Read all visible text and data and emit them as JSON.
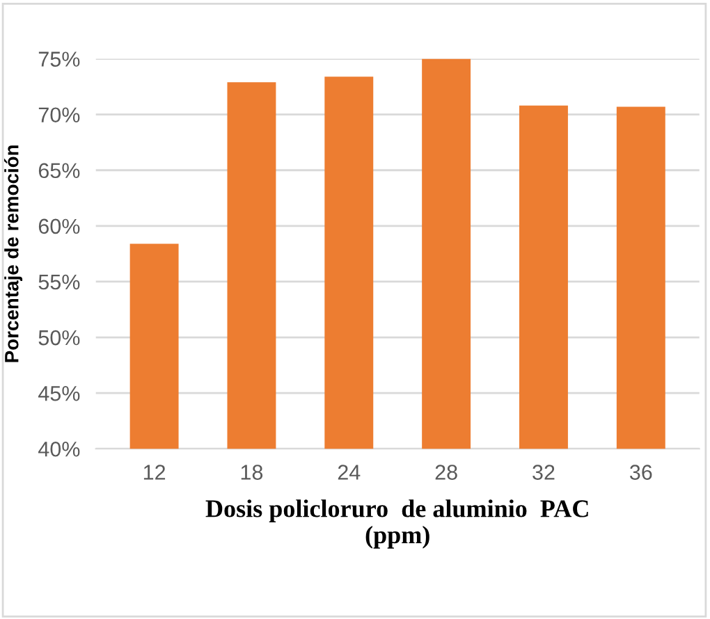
{
  "chart_data": {
    "type": "bar",
    "xlabel": "Dosis policloruro  de aluminio  PAC\n(ppm)",
    "ylabel": "Porcentaje de remoción",
    "categories": [
      "12",
      "18",
      "24",
      "28",
      "32",
      "36"
    ],
    "values": [
      58.4,
      72.9,
      73.4,
      75.0,
      70.8,
      70.7
    ],
    "color": "#ed7d31",
    "ylim": [
      40,
      75
    ],
    "yticks": [
      {
        "value": 40,
        "label": "40%"
      },
      {
        "value": 45,
        "label": "45%"
      },
      {
        "value": 50,
        "label": "50%"
      },
      {
        "value": 55,
        "label": "55%"
      },
      {
        "value": 60,
        "label": "60%"
      },
      {
        "value": 65,
        "label": "65%"
      },
      {
        "value": 70,
        "label": "70%"
      },
      {
        "value": 75,
        "label": "75%"
      }
    ],
    "grid": "y"
  }
}
